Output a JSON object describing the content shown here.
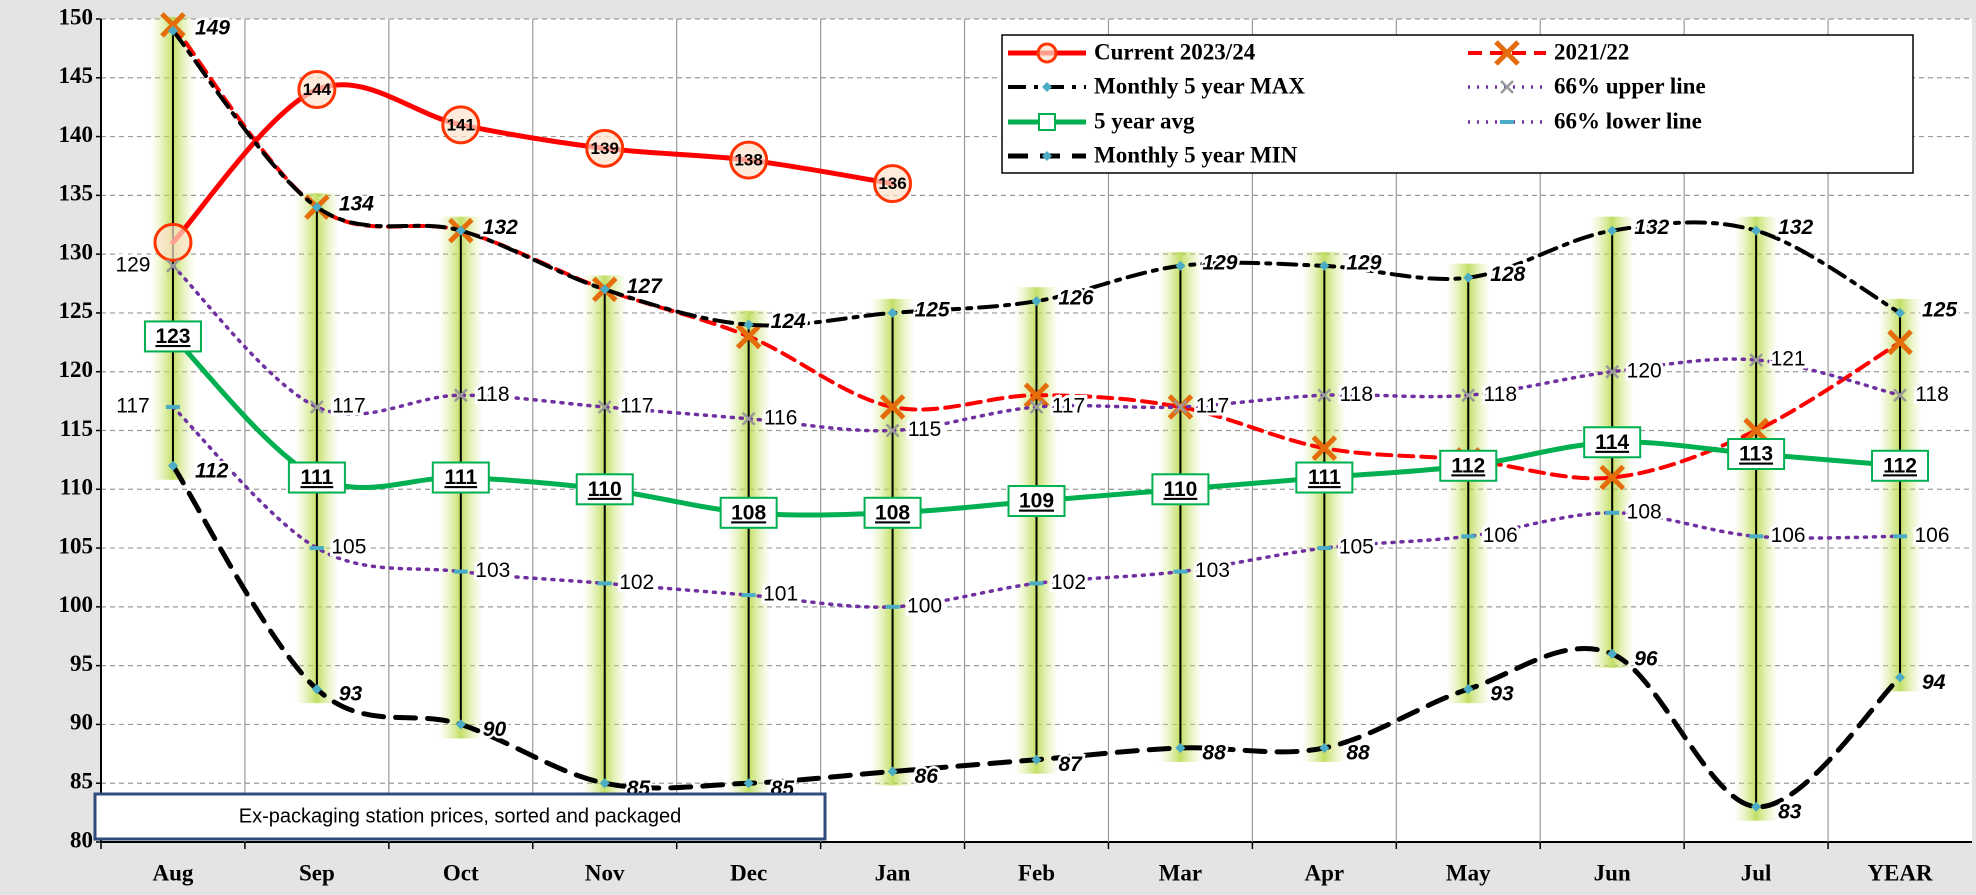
{
  "chart_data": {
    "type": "line",
    "annotation": "Ex-packaging station prices, sorted and packaged",
    "categories": [
      "Aug",
      "Sep",
      "Oct",
      "Nov",
      "Dec",
      "Jan",
      "Feb",
      "Mar",
      "Apr",
      "May",
      "Jun",
      "Jul",
      "YEAR"
    ],
    "ylim": [
      80,
      150
    ],
    "yticks": [
      80,
      85,
      90,
      95,
      100,
      105,
      110,
      115,
      120,
      125,
      130,
      135,
      140,
      145,
      150
    ],
    "grid": true,
    "legend": "top-right",
    "series": [
      {
        "name": "Current 2023/24",
        "color": "#ff0000",
        "values": [
          131,
          144,
          141,
          139,
          138,
          136,
          null,
          null,
          null,
          null,
          null,
          null,
          null
        ],
        "value_labels": [
          null,
          "144",
          "141",
          "139",
          "138",
          "136",
          null,
          null,
          null,
          null,
          null,
          null,
          null
        ]
      },
      {
        "name": "2021/22",
        "color": "#ff0000",
        "values": [
          149.5,
          134,
          132,
          127,
          123,
          117,
          118,
          117,
          113.5,
          112.5,
          111,
          115,
          122.5
        ]
      },
      {
        "name": "Monthly 5 year MAX",
        "color": "#000000",
        "values": [
          149,
          134,
          132,
          127,
          124,
          125,
          126,
          129,
          129,
          128,
          132,
          132,
          125
        ]
      },
      {
        "name": "66% upper line",
        "color": "#7030a0",
        "values": [
          129,
          117,
          118,
          117,
          116,
          115,
          117,
          117,
          118,
          118,
          120,
          121,
          118
        ]
      },
      {
        "name": "5 year avg",
        "color": "#00b050",
        "values": [
          123,
          111,
          111,
          110,
          108,
          108,
          109,
          110,
          111,
          112,
          114,
          113,
          112
        ]
      },
      {
        "name": "66% lower line",
        "color": "#7030a0",
        "values": [
          117,
          105,
          103,
          102,
          101,
          100,
          102,
          103,
          105,
          106,
          108,
          106,
          106
        ]
      },
      {
        "name": "Monthly 5 year MIN",
        "color": "#000000",
        "values": [
          112,
          93,
          90,
          85,
          85,
          86,
          87,
          88,
          88,
          93,
          96,
          83,
          94
        ]
      }
    ]
  }
}
